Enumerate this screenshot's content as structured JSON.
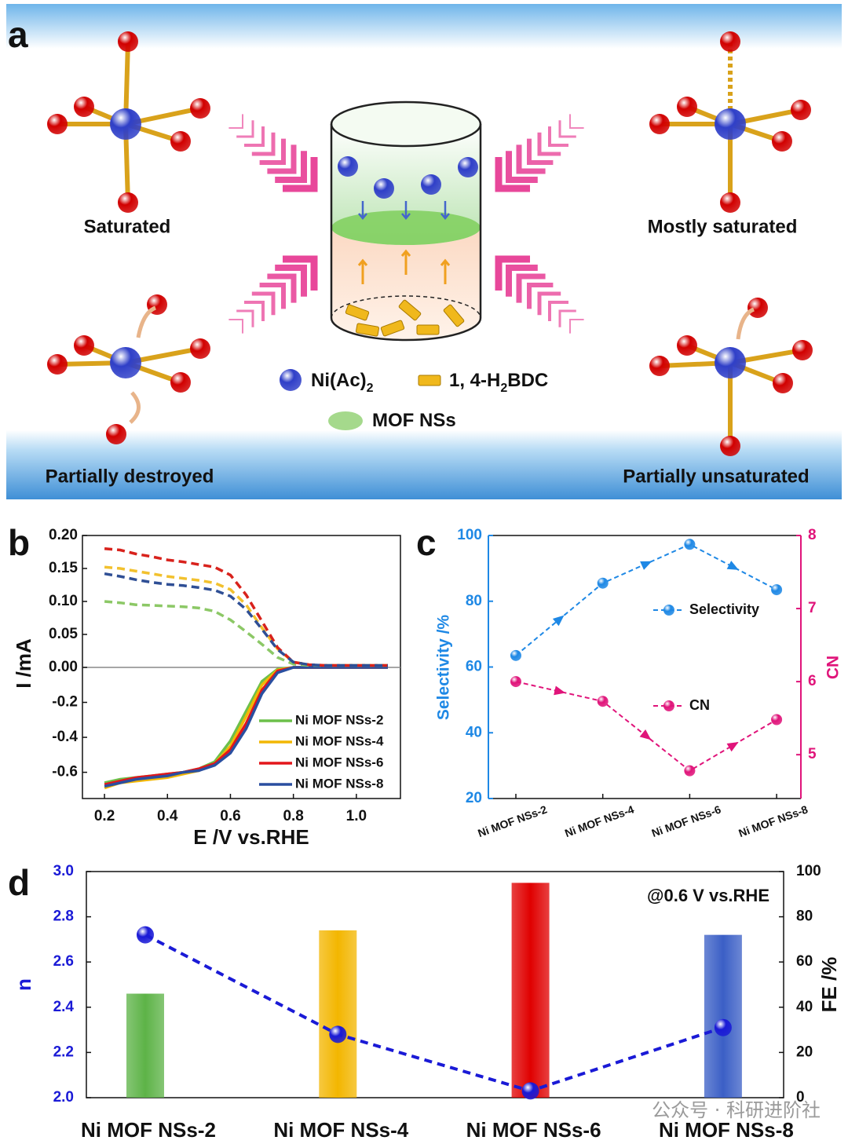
{
  "panel_a": {
    "label": "a",
    "states": [
      "Saturated",
      "Mostly saturated",
      "Partially destroyed",
      "Partially unsaturated"
    ],
    "legend": [
      {
        "parts": [
          "Ni(Ac)",
          "2"
        ]
      },
      {
        "parts": [
          "1, 4-H",
          "2",
          "BDC"
        ]
      },
      {
        "parts": [
          "MOF NSs"
        ]
      }
    ]
  },
  "chart_data": [
    {
      "type": "line",
      "label": "b",
      "xlabel": "E /V vs.RHE",
      "ylabel": "I /mA",
      "x": [
        0.2,
        0.25,
        0.3,
        0.35,
        0.4,
        0.45,
        0.5,
        0.55,
        0.6,
        0.65,
        0.7,
        0.75,
        0.8,
        0.85,
        0.9,
        0.95,
        1.0,
        1.05,
        1.1
      ],
      "xlim": [
        0.13,
        1.14
      ],
      "xticks": [
        0.2,
        0.4,
        0.6,
        0.8,
        {
          "value": 1,
          "label": "1.0"
        }
      ],
      "ylim": [
        0,
        0.2
      ],
      "yticks": [
        {
          "value": 0.2,
          "label": "0.20"
        },
        {
          "value": 0.15,
          "label": "0.15"
        },
        {
          "value": 0.1,
          "label": "0.10"
        },
        {
          "value": 0.05,
          "label": "0.05"
        },
        {
          "value": 0,
          "label": "0.00"
        }
      ],
      "y2lim": [
        -0.75,
        0
      ],
      "y2ticks": [
        -0.2,
        -0.4,
        -0.6
      ],
      "series": [
        {
          "name": "Ni MOF NSs-2",
          "color": "#6cc04a",
          "axis": "y2",
          "values": [
            -0.66,
            -0.64,
            -0.63,
            -0.62,
            -0.61,
            -0.6,
            -0.58,
            -0.54,
            -0.42,
            -0.25,
            -0.08,
            -0.01,
            0,
            0,
            0,
            0,
            0,
            0,
            0
          ]
        },
        {
          "name": "Ni MOF NSs-4",
          "color": "#f2b705",
          "axis": "y2",
          "values": [
            -0.69,
            -0.66,
            -0.65,
            -0.64,
            -0.63,
            -0.61,
            -0.59,
            -0.55,
            -0.45,
            -0.28,
            -0.1,
            -0.015,
            0,
            0,
            0,
            0,
            0,
            0,
            0
          ]
        },
        {
          "name": "Ni MOF NSs-6",
          "color": "#e3161b",
          "axis": "y2",
          "values": [
            -0.67,
            -0.65,
            -0.63,
            -0.62,
            -0.61,
            -0.6,
            -0.58,
            -0.55,
            -0.47,
            -0.32,
            -0.13,
            -0.02,
            0,
            0,
            0,
            0,
            0,
            0,
            0
          ]
        },
        {
          "name": "Ni MOF NSs-8",
          "color": "#2a4fa0",
          "axis": "y2",
          "values": [
            -0.68,
            -0.66,
            -0.64,
            -0.63,
            -0.62,
            -0.6,
            -0.59,
            -0.56,
            -0.49,
            -0.35,
            -0.15,
            -0.03,
            0,
            0,
            0,
            0,
            0,
            0,
            0
          ]
        },
        {
          "color": "#8cc866",
          "axis": "y",
          "dashed": true,
          "values": [
            0.1,
            0.098,
            0.095,
            0.094,
            0.093,
            0.092,
            0.09,
            0.085,
            0.072,
            0.054,
            0.035,
            0.015,
            0.005,
            0.003,
            0.003,
            0.003,
            0.003,
            0.003,
            0.003
          ]
        },
        {
          "color": "#f2c12e",
          "axis": "y",
          "dashed": true,
          "values": [
            0.152,
            0.15,
            0.146,
            0.142,
            0.138,
            0.135,
            0.132,
            0.128,
            0.118,
            0.095,
            0.06,
            0.028,
            0.008,
            0.004,
            0.003,
            0.003,
            0.003,
            0.003,
            0.003
          ]
        },
        {
          "color": "#d8221c",
          "axis": "y",
          "dashed": true,
          "values": [
            0.18,
            0.178,
            0.172,
            0.168,
            0.163,
            0.16,
            0.156,
            0.152,
            0.14,
            0.11,
            0.07,
            0.03,
            0.008,
            0.004,
            0.003,
            0.003,
            0.003,
            0.003,
            0.003
          ]
        },
        {
          "color": "#2f4f95",
          "axis": "y",
          "dashed": true,
          "values": [
            0.142,
            0.138,
            0.133,
            0.129,
            0.126,
            0.124,
            0.121,
            0.117,
            0.108,
            0.088,
            0.058,
            0.027,
            0.008,
            0.004,
            0.003,
            0.003,
            0.003,
            0.003,
            0.003
          ]
        }
      ]
    },
    {
      "type": "dual_axis_line",
      "label": "c",
      "ylabel": "Selectivity /%",
      "y2label": "CN",
      "categories": [
        "Ni MOF NSs-2",
        "Ni MOF NSs-4",
        "Ni MOF NSs-6",
        "Ni MOF NSs-8"
      ],
      "ylim": [
        20,
        100
      ],
      "yticks": [
        20,
        40,
        60,
        80,
        100
      ],
      "y2lim": [
        4.4,
        8
      ],
      "y2ticks": [
        5,
        6,
        7,
        8
      ],
      "series": [
        {
          "name": "Selectivity",
          "color": "#1e88e5",
          "axis": "y",
          "values": [
            63.5,
            85.5,
            97.3,
            83.5
          ]
        },
        {
          "name": "CN",
          "color": "#e0147a",
          "axis": "y2",
          "values": [
            6.0,
            5.73,
            4.78,
            5.48
          ]
        }
      ]
    },
    {
      "type": "bar_line",
      "label": "d",
      "ylabel": "n",
      "y2label": "FE /%",
      "annotation": "@0.6 V vs.RHE",
      "categories": [
        "Ni MOF NSs-2",
        "Ni MOF NSs-4",
        "Ni MOF NSs-6",
        "Ni MOF NSs-8"
      ],
      "ylim": [
        2,
        3
      ],
      "yticks": [
        {
          "value": 2,
          "label": "2.0"
        },
        2.2,
        2.4,
        2.6,
        2.8,
        {
          "value": 3,
          "label": "3.0"
        }
      ],
      "y2lim": [
        0,
        100
      ],
      "y2ticks": [
        0,
        20,
        40,
        60,
        80,
        100
      ],
      "series": [
        {
          "kind": "bar",
          "axis": "y2",
          "colors": [
            "#5db347",
            "#f3b600",
            "#e00000",
            "#3b5fc6"
          ],
          "values": [
            46,
            74,
            95,
            72
          ]
        },
        {
          "kind": "line",
          "axis": "y",
          "color": "#1a1ad6",
          "values": [
            2.72,
            2.28,
            2.03,
            2.31
          ]
        }
      ]
    }
  ],
  "watermark": "公众号 · 科研进阶社"
}
